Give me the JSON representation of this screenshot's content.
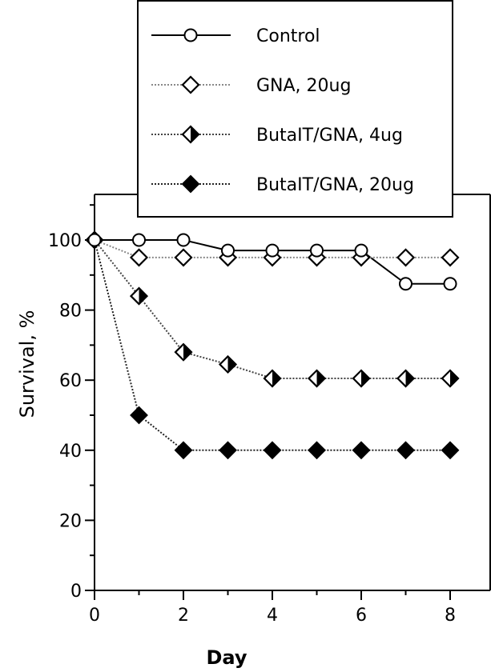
{
  "chart_data": {
    "type": "line",
    "title": "",
    "xlabel": "Day",
    "ylabel": "Survival, %",
    "xlim": [
      0,
      9
    ],
    "ylim": [
      0,
      115
    ],
    "xticks": [
      0,
      2,
      4,
      6,
      8
    ],
    "yticks": [
      0,
      20,
      40,
      60,
      80,
      100
    ],
    "grid": false,
    "legend_position": "top",
    "series": [
      {
        "name": "Control",
        "marker": "circle-open",
        "line_color": "#000000",
        "line_style": "solid",
        "x": [
          0,
          1,
          2,
          3,
          4,
          5,
          6,
          7,
          8
        ],
        "values": [
          100,
          100,
          100,
          97,
          97,
          97,
          97,
          87.5,
          87.5
        ]
      },
      {
        "name": "GNA, 20ug",
        "marker": "diamond-open",
        "line_color": "#888888",
        "line_style": "dotted",
        "x": [
          0,
          1,
          2,
          3,
          4,
          5,
          6,
          7,
          8
        ],
        "values": [
          100,
          95,
          95,
          95,
          95,
          95,
          95,
          95,
          95
        ]
      },
      {
        "name": "ButaIT/GNA, 4ug",
        "marker": "diamond-half",
        "line_color": "#444444",
        "line_style": "dotted",
        "x": [
          0,
          1,
          2,
          3,
          4,
          5,
          6,
          7,
          8
        ],
        "values": [
          100,
          84,
          68,
          64.5,
          60.5,
          60.5,
          60.5,
          60.5,
          60.5
        ]
      },
      {
        "name": "ButaIT/GNA, 20ug",
        "marker": "diamond-filled",
        "line_color": "#222222",
        "line_style": "dotted",
        "x": [
          0,
          1,
          2,
          3,
          4,
          5,
          6,
          7,
          8
        ],
        "values": [
          100,
          50,
          40,
          40,
          40,
          40,
          40,
          40,
          40
        ]
      }
    ]
  }
}
